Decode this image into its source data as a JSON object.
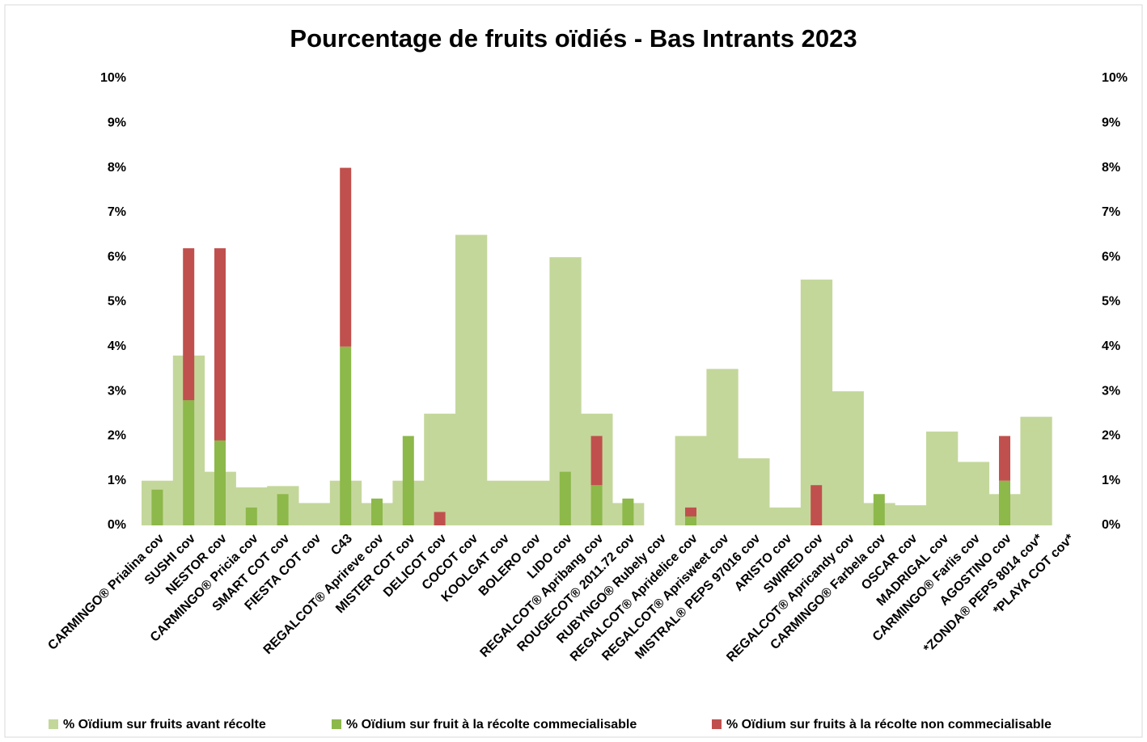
{
  "chart_data": {
    "type": "bar",
    "title": "Pourcentage de fruits oïdiés - Bas Intrants 2023",
    "categories": [
      "CARMINGO® Prialina cov",
      "SUSHI cov",
      "NESTOR cov",
      "CARMINGO® Pricia cov",
      "SMART COT cov",
      "FIESTA COT cov",
      "C43",
      "REGALCOT® Aprireve cov",
      "MISTER COT cov",
      "DELICOT cov",
      "COCOT cov",
      "KOOLGAT cov",
      "BOLERO cov",
      "LIDO cov",
      "REGALCOT® Apribang cov",
      "ROUGECOT® 2011.72 cov",
      "RUBYNGO® Rubely cov",
      "REGALCOT® Apridelice cov",
      "REGALCOT® Aprisweet cov",
      "MISTRAL® PEPS 97016 cov",
      "ARISTO cov",
      "SWIRED cov",
      "REGALCOT® Apricandy cov",
      "CARMINGO® Farbela cov",
      "OSCAR cov",
      "MADRIGAL cov",
      "CARMINGO® Farlis cov",
      "AGOSTINO cov",
      "*ZONDA® PEPS 8014 cov*",
      "*PLAYA COT cov*"
    ],
    "series": [
      {
        "name": "% Oïdium sur fruits avant récolte",
        "color": "#c4d79b",
        "values": [
          1.0,
          3.8,
          1.2,
          0.85,
          0.88,
          0.5,
          1.0,
          0.5,
          1.0,
          2.5,
          6.5,
          1.0,
          1.0,
          6.0,
          2.5,
          0.5,
          null,
          2.0,
          3.5,
          1.5,
          0.4,
          5.5,
          3.0,
          0.5,
          0.45,
          2.1,
          1.42,
          0.7,
          2.43,
          null
        ]
      },
      {
        "name": "% Oïdium sur fruit à la récolte commecialisable",
        "color": "#8db84a",
        "values": [
          0.8,
          2.8,
          1.9,
          0.4,
          0.7,
          null,
          4.0,
          0.6,
          2.0,
          null,
          null,
          null,
          null,
          1.2,
          0.9,
          0.6,
          null,
          0.2,
          null,
          null,
          null,
          null,
          null,
          0.7,
          null,
          null,
          null,
          1.0,
          null,
          null
        ]
      },
      {
        "name": "% Oïdium sur fruits à la récolte non commecialisable",
        "color": "#c0504d",
        "values": [
          null,
          3.4,
          4.3,
          null,
          null,
          null,
          4.0,
          null,
          null,
          0.3,
          null,
          null,
          null,
          null,
          1.1,
          null,
          null,
          0.2,
          null,
          null,
          null,
          0.9,
          null,
          null,
          null,
          null,
          null,
          1.0,
          null,
          null
        ]
      }
    ],
    "ylim": [
      0,
      10
    ],
    "yticks": [
      {
        "value": 0,
        "label": "0%"
      },
      {
        "value": 1,
        "label": "1%"
      },
      {
        "value": 2,
        "label": "2%"
      },
      {
        "value": 3,
        "label": "3%"
      },
      {
        "value": 4,
        "label": "4%"
      },
      {
        "value": 5,
        "label": "5%"
      },
      {
        "value": 6,
        "label": "6%"
      },
      {
        "value": 7,
        "label": "7%"
      },
      {
        "value": 8,
        "label": "8%"
      },
      {
        "value": 9,
        "label": "9%"
      },
      {
        "value": 10,
        "label": "10%"
      }
    ],
    "y2lim": [
      0,
      10
    ],
    "y2ticks": [
      {
        "value": 0,
        "label": "0%"
      },
      {
        "value": 1,
        "label": "1%"
      },
      {
        "value": 2,
        "label": "2%"
      },
      {
        "value": 3,
        "label": "3%"
      },
      {
        "value": 4,
        "label": "4%"
      },
      {
        "value": 5,
        "label": "5%"
      },
      {
        "value": 6,
        "label": "6%"
      },
      {
        "value": 7,
        "label": "7%"
      },
      {
        "value": 8,
        "label": "8%"
      },
      {
        "value": 9,
        "label": "9%"
      },
      {
        "value": 10,
        "label": "10%"
      }
    ],
    "legend": "bottom"
  }
}
